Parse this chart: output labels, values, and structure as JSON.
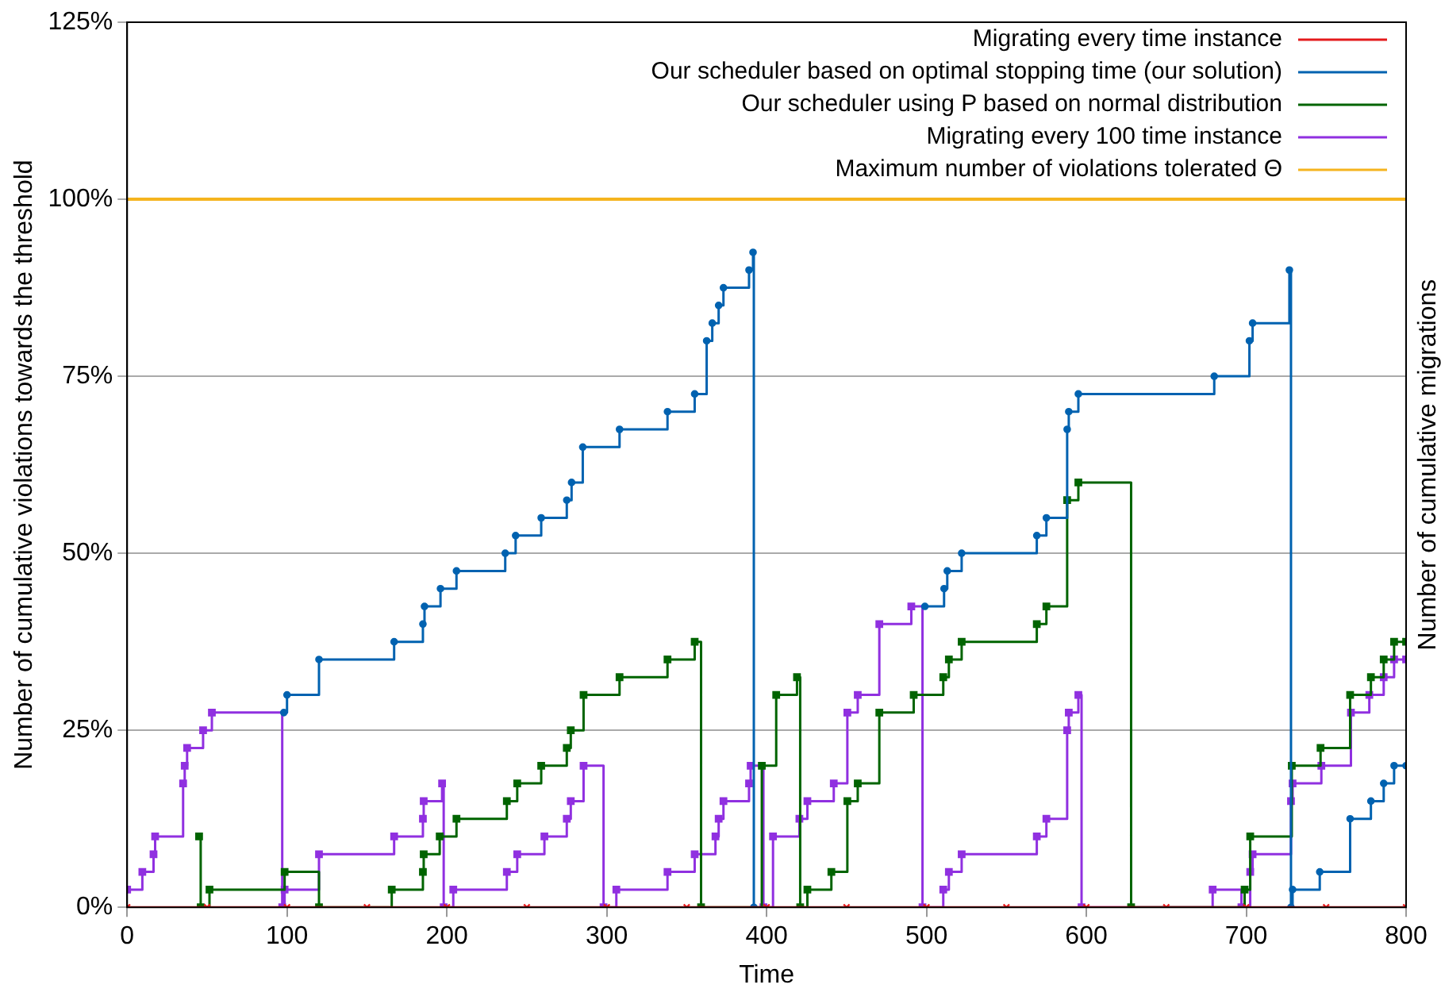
{
  "chart_data": {
    "type": "step",
    "xlabel": "Time",
    "ylabel": "Number of cumulative violations towards the threshold",
    "y2label": "Number of cumulative migrations",
    "xlim": [
      0,
      800
    ],
    "xticks": [
      0,
      100,
      200,
      300,
      400,
      500,
      600,
      700,
      800
    ],
    "ylim": [
      0,
      125
    ],
    "yticks": [
      {
        "value": 0,
        "label": "0%"
      },
      {
        "value": 25,
        "label": "25%"
      },
      {
        "value": 50,
        "label": "50%"
      },
      {
        "value": 75,
        "label": "75%"
      },
      {
        "value": 100,
        "label": "100%"
      },
      {
        "value": 125,
        "label": "125%"
      }
    ],
    "grid": "y",
    "legend": "top right",
    "series": [
      {
        "name": "Migrating every time instance",
        "color": "#e41a1c",
        "marker": "cross",
        "x": [
          0,
          50,
          100,
          150,
          200,
          250,
          300,
          350,
          400,
          450,
          500,
          550,
          600,
          650,
          700,
          750,
          800
        ],
        "values": [
          0,
          0,
          0,
          0,
          0,
          0,
          0,
          0,
          0,
          0,
          0,
          0,
          0,
          0,
          0,
          0,
          0
        ]
      },
      {
        "name": "Our scheduler based on optimal stopping time (our solution)",
        "color": "#0062b0",
        "marker": "circle",
        "x": [
          98,
          100,
          120,
          167,
          185,
          186,
          196,
          206,
          236.5,
          243,
          259,
          275,
          278,
          285,
          308,
          338,
          355,
          362.5,
          366,
          370,
          373,
          389,
          391.5,
          392,
          393,
          499,
          511,
          513,
          522,
          569,
          575,
          588,
          589,
          595,
          680,
          702,
          704,
          727,
          728,
          729,
          746,
          765,
          778,
          786,
          792.5,
          800
        ],
        "values": [
          27.5,
          30,
          35,
          37.5,
          40,
          42.5,
          45,
          47.5,
          50,
          52.5,
          55,
          57.5,
          60,
          65,
          67.5,
          70,
          72.5,
          80,
          82.5,
          85,
          87.5,
          90,
          92.5,
          0,
          null,
          42.5,
          45,
          47.5,
          50,
          52.5,
          55,
          67.5,
          70,
          72.5,
          75,
          80,
          82.5,
          90,
          0,
          2.5,
          5,
          12.5,
          15,
          17.5,
          20,
          20
        ]
      },
      {
        "name": "Our scheduler using P based on normal distribution",
        "color": "#006400",
        "marker": "square",
        "x": [
          45,
          46,
          51.5,
          98.5,
          120,
          165.5,
          185,
          185.5,
          195.5,
          206,
          237.5,
          244,
          259,
          275,
          277.5,
          285.5,
          308,
          338,
          355,
          359,
          397,
          406,
          419,
          421,
          425.5,
          440.5,
          450.5,
          457,
          470.5,
          492,
          510.5,
          514,
          522,
          569,
          575,
          588,
          595,
          628,
          699,
          702.5,
          728.5,
          746.5,
          765,
          778,
          786,
          792.5,
          800
        ],
        "values": [
          10,
          0,
          2.5,
          5,
          0,
          2.5,
          5,
          7.5,
          10,
          12.5,
          15,
          17.5,
          20,
          22.5,
          25,
          30,
          32.5,
          35,
          37.5,
          0,
          20,
          30,
          32.5,
          0,
          2.5,
          5,
          15,
          17.5,
          27.5,
          30,
          32.5,
          35,
          37.5,
          40,
          42.5,
          57.5,
          60,
          0,
          2.5,
          10,
          20,
          22.5,
          30,
          32.5,
          35,
          37.5,
          37.5
        ]
      },
      {
        "name": "Migrating every 100 time instance",
        "color": "#9030e0",
        "marker": "square",
        "x": [
          0,
          9.5,
          16.5,
          17.5,
          35,
          36,
          37.5,
          47.5,
          53,
          97,
          98.5,
          120,
          167,
          185,
          185.5,
          197,
          198,
          204,
          237.5,
          244,
          261,
          275,
          277.5,
          285.5,
          298,
          306,
          338,
          355,
          368,
          370,
          373,
          389,
          390,
          398,
          404,
          420.5,
          425.5,
          442,
          450.5,
          457,
          470.5,
          490.5,
          497.5,
          510.5,
          514,
          522,
          569,
          575,
          588,
          589,
          595,
          597,
          679,
          697,
          702.5,
          704,
          728,
          729,
          747,
          765.5,
          777,
          786,
          792.5,
          800
        ],
        "values": [
          2.5,
          5,
          7.5,
          10,
          17.5,
          20,
          22.5,
          25,
          27.5,
          0,
          2.5,
          7.5,
          10,
          12.5,
          15,
          17.5,
          0,
          2.5,
          5,
          7.5,
          10,
          12.5,
          15,
          20,
          0,
          2.5,
          5,
          7.5,
          10,
          12.5,
          15,
          17.5,
          20,
          0,
          10,
          12.5,
          15,
          17.5,
          27.5,
          30,
          40,
          42.5,
          0,
          2.5,
          5,
          7.5,
          10,
          12.5,
          25,
          27.5,
          30,
          0,
          2.5,
          0,
          5,
          7.5,
          15,
          17.5,
          20,
          27.5,
          30,
          32.5,
          35,
          35
        ]
      },
      {
        "name": "Maximum number of violations tolerated Θ",
        "color": "#f5b41e",
        "type": "line",
        "marker": "none",
        "x": [
          0,
          800
        ],
        "values": [
          100,
          100
        ]
      }
    ]
  }
}
